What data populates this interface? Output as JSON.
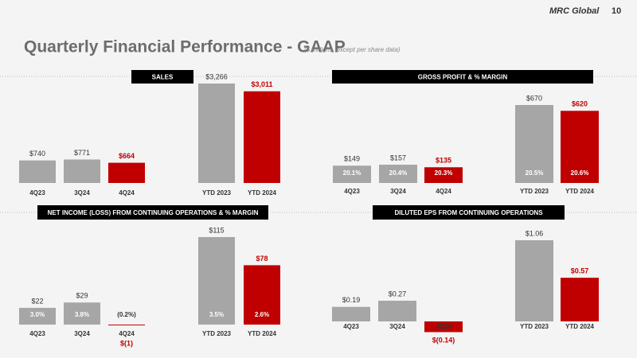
{
  "header": {
    "logo": "MRC Global",
    "page": "10",
    "title": "Quarterly Financial Performance - GAAP",
    "subtitle": "($ millions, except per share data)"
  },
  "chart_data": [
    {
      "type": "bar",
      "title": "SALES",
      "categories": [
        "4Q23",
        "3Q24",
        "4Q24",
        "YTD 2023",
        "YTD 2024"
      ],
      "values": [
        740,
        771,
        664,
        3266,
        3011
      ],
      "value_labels": [
        "$740",
        "$771",
        "$664",
        "$3,266",
        "$3,011"
      ],
      "colors": [
        "#a6a6a6",
        "#a6a6a6",
        "#c00000",
        "#a6a6a6",
        "#c00000"
      ]
    },
    {
      "type": "bar",
      "title": "GROSS PROFIT & % MARGIN",
      "categories": [
        "4Q23",
        "3Q24",
        "4Q24",
        "YTD 2023",
        "YTD 2024"
      ],
      "values": [
        149,
        157,
        135,
        670,
        620
      ],
      "value_labels": [
        "$149",
        "$157",
        "$135",
        "$670",
        "$620"
      ],
      "margins": [
        20.1,
        20.4,
        20.3,
        20.5,
        20.6
      ],
      "margin_labels": [
        "20.1%",
        "20.4%",
        "20.3%",
        "20.5%",
        "20.6%"
      ],
      "colors": [
        "#a6a6a6",
        "#a6a6a6",
        "#c00000",
        "#a6a6a6",
        "#c00000"
      ]
    },
    {
      "type": "bar",
      "title": "NET INCOME (LOSS) FROM CONTINUING OPERATIONS & % MARGIN",
      "categories": [
        "4Q23",
        "3Q24",
        "4Q24",
        "YTD 2023",
        "YTD 2024"
      ],
      "values": [
        22,
        29,
        -1,
        115,
        78
      ],
      "value_labels": [
        "$22",
        "$29",
        "$(1)",
        "$115",
        "$78"
      ],
      "margins": [
        3.0,
        3.8,
        -0.2,
        3.5,
        2.6
      ],
      "margin_labels": [
        "3.0%",
        "3.8%",
        "(0.2%)",
        "3.5%",
        "2.6%"
      ],
      "colors": [
        "#a6a6a6",
        "#a6a6a6",
        "#c00000",
        "#a6a6a6",
        "#c00000"
      ]
    },
    {
      "type": "bar",
      "title": "DILUTED EPS FROM CONTINUING OPERATIONS",
      "categories": [
        "4Q23",
        "3Q24",
        "4Q24",
        "YTD 2023",
        "YTD 2024"
      ],
      "values": [
        0.19,
        0.27,
        -0.14,
        1.06,
        0.57
      ],
      "value_labels": [
        "$0.19",
        "$0.27",
        "$(0.14)",
        "$1.06",
        "$0.57"
      ],
      "colors": [
        "#a6a6a6",
        "#a6a6a6",
        "#c00000",
        "#a6a6a6",
        "#c00000"
      ]
    }
  ]
}
